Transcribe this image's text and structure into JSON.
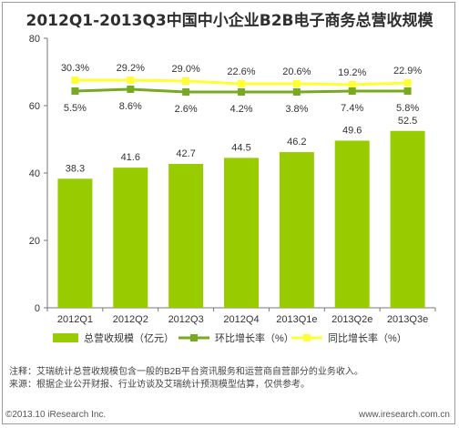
{
  "chart_data": {
    "type": "bar",
    "title": "2012Q1-2013Q3中国中小企业B2B电子商务总营收规模",
    "categories": [
      "2012Q1",
      "2012Q2",
      "2012Q3",
      "2012Q4",
      "2013Q1e",
      "2013Q2e",
      "2013Q3e"
    ],
    "ylim": [
      0,
      80
    ],
    "yticks": [
      0,
      20,
      40,
      60,
      80
    ],
    "grid": false,
    "legend_position": "bottom",
    "series": [
      {
        "name": "总营收规模（亿元）",
        "type": "bar",
        "color": "#99cc00",
        "values": [
          38.3,
          41.6,
          42.7,
          44.5,
          46.2,
          49.6,
          52.5
        ],
        "labels": [
          "38.3",
          "41.6",
          "42.7",
          "44.5",
          "46.2",
          "49.6",
          "52.5"
        ]
      },
      {
        "name": "环比增长率（%）",
        "type": "line",
        "color": "#77aa22",
        "marker": "square",
        "labels": [
          "5.5%",
          "8.6%",
          "2.6%",
          "4.2%",
          "3.8%",
          "7.4%",
          "5.8%"
        ]
      },
      {
        "name": "同比增长率（%）",
        "type": "line",
        "color": "#ffff33",
        "marker": "square",
        "labels": [
          "30.3%",
          "29.2%",
          "29.0%",
          "22.6%",
          "20.6%",
          "19.2%",
          "22.9%"
        ]
      }
    ]
  },
  "notes": [
    "注释：艾瑞统计总营收规模包含一般的B2B平台资讯服务和运营商自营部分的业务收入。",
    "来源：根据企业公开财报、行业访谈及艾瑞统计预测模型估算，仅供参考。"
  ],
  "footer": {
    "brand": "©2013.10 iResearch Inc.",
    "site": "www.iresearch.com.cn"
  }
}
